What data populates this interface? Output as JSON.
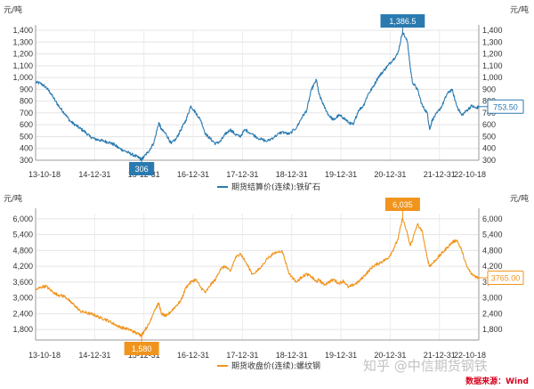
{
  "chart_data": [
    {
      "type": "line",
      "unit_left": "元/吨",
      "unit_right": "元/吨",
      "ylim": [
        300,
        1400
      ],
      "yticks": [
        300,
        400,
        500,
        600,
        700,
        800,
        900,
        1000,
        1100,
        1200,
        1300,
        1400
      ],
      "ytick_labels_left": [
        "300",
        "400",
        "500",
        "600",
        "700",
        "800",
        "900",
        "1,000",
        "1,100",
        "1,200",
        "1,300",
        "1,400"
      ],
      "ytick_labels_right": [
        "300",
        "400",
        "500",
        "600",
        "700",
        "800",
        "900",
        "1,000",
        "1,100",
        "1,200",
        "1,300",
        "1,400"
      ],
      "xlim": [
        2013.797,
        2022.797
      ],
      "x_tick_values": [
        2013.797,
        2014.997,
        2015.997,
        2016.997,
        2017.997,
        2018.997,
        2019.997,
        2020.997,
        2021.997,
        2022.797
      ],
      "x_tick_labels": [
        "13-10-18",
        "14-12-31",
        "15-12-31",
        "16-12-31",
        "17-12-31",
        "18-12-31",
        "19-12-31",
        "20-12-31",
        "21-12-31",
        "22-10-18"
      ],
      "color": "#2a7ab0",
      "series": [
        {
          "name": "期货结算价(连续):铁矿石",
          "x": [
            2013.8,
            2013.9,
            2014.0,
            2014.1,
            2014.2,
            2014.3,
            2014.4,
            2014.5,
            2014.6,
            2014.7,
            2014.8,
            2014.9,
            2015.0,
            2015.1,
            2015.2,
            2015.3,
            2015.4,
            2015.5,
            2015.6,
            2015.7,
            2015.8,
            2015.9,
            2015.95,
            2016.0,
            2016.1,
            2016.2,
            2016.3,
            2016.35,
            2016.45,
            2016.55,
            2016.65,
            2016.75,
            2016.85,
            2016.95,
            2017.05,
            2017.15,
            2017.25,
            2017.35,
            2017.45,
            2017.55,
            2017.65,
            2017.75,
            2017.85,
            2017.95,
            2018.05,
            2018.2,
            2018.35,
            2018.5,
            2018.65,
            2018.8,
            2018.95,
            2019.1,
            2019.2,
            2019.3,
            2019.4,
            2019.5,
            2019.55,
            2019.65,
            2019.75,
            2019.85,
            2019.95,
            2020.05,
            2020.15,
            2020.25,
            2020.35,
            2020.45,
            2020.55,
            2020.65,
            2020.75,
            2020.85,
            2020.95,
            2021.05,
            2021.15,
            2021.25,
            2021.35,
            2021.4,
            2021.45,
            2021.55,
            2021.65,
            2021.75,
            2021.8,
            2021.85,
            2021.95,
            2022.05,
            2022.15,
            2022.25,
            2022.35,
            2022.45,
            2022.55,
            2022.65,
            2022.75,
            2022.797
          ],
          "y": [
            960,
            950,
            920,
            870,
            800,
            740,
            690,
            630,
            600,
            570,
            540,
            500,
            480,
            470,
            460,
            450,
            430,
            400,
            380,
            360,
            340,
            320,
            306,
            330,
            380,
            450,
            620,
            560,
            520,
            440,
            480,
            560,
            640,
            760,
            700,
            640,
            520,
            480,
            440,
            460,
            520,
            560,
            520,
            500,
            560,
            520,
            480,
            460,
            500,
            540,
            520,
            580,
            660,
            720,
            900,
            980,
            860,
            760,
            680,
            640,
            680,
            660,
            620,
            600,
            720,
            760,
            860,
            920,
            1000,
            1050,
            1100,
            1150,
            1200,
            1386.5,
            1300,
            1100,
            960,
            900,
            760,
            700,
            560,
            640,
            700,
            760,
            860,
            900,
            760,
            680,
            720,
            760,
            740,
            753.5
          ]
        }
      ],
      "annotations": [
        {
          "label": "1,386.5",
          "x": 2021.25,
          "y": 1386.5,
          "kind": "max"
        },
        {
          "label": "306",
          "x": 2015.95,
          "y": 306,
          "kind": "min"
        },
        {
          "label": "753.50",
          "x": 2022.797,
          "y": 753.5,
          "kind": "last"
        }
      ]
    },
    {
      "type": "line",
      "unit_left": "元/吨",
      "unit_right": "元/吨",
      "ylim": [
        1400,
        6200
      ],
      "yticks": [
        1800,
        2400,
        3000,
        3600,
        4200,
        4800,
        5400,
        6000
      ],
      "ytick_labels_left": [
        "1,800",
        "2,400",
        "3,000",
        "3,600",
        "4,200",
        "4,800",
        "5,400",
        "6,000"
      ],
      "ytick_labels_right": [
        "1,800",
        "2,400",
        "3,000",
        "3,600",
        "4,200",
        "4,800",
        "5,400",
        "6,000"
      ],
      "xlim": [
        2013.797,
        2022.797
      ],
      "x_tick_values": [
        2013.797,
        2014.997,
        2015.997,
        2016.997,
        2017.997,
        2018.997,
        2019.997,
        2020.997,
        2021.997,
        2022.797
      ],
      "x_tick_labels": [
        "13-10-18",
        "14-12-31",
        "15-12-31",
        "16-12-31",
        "17-12-31",
        "18-12-31",
        "19-12-31",
        "20-12-31",
        "21-12-31",
        "22-10-18"
      ],
      "color": "#f0941d",
      "series": [
        {
          "name": "期货收盘价(连续):螺纹钢",
          "x": [
            2013.8,
            2013.9,
            2014.0,
            2014.1,
            2014.2,
            2014.3,
            2014.4,
            2014.5,
            2014.6,
            2014.7,
            2014.8,
            2014.9,
            2015.0,
            2015.1,
            2015.2,
            2015.3,
            2015.4,
            2015.5,
            2015.6,
            2015.7,
            2015.8,
            2015.9,
            2015.95,
            2016.0,
            2016.1,
            2016.2,
            2016.3,
            2016.35,
            2016.45,
            2016.55,
            2016.65,
            2016.75,
            2016.85,
            2016.95,
            2017.05,
            2017.15,
            2017.25,
            2017.35,
            2017.45,
            2017.55,
            2017.65,
            2017.75,
            2017.85,
            2017.95,
            2018.05,
            2018.2,
            2018.35,
            2018.5,
            2018.65,
            2018.8,
            2018.95,
            2019.1,
            2019.2,
            2019.3,
            2019.4,
            2019.5,
            2019.55,
            2019.65,
            2019.75,
            2019.85,
            2019.95,
            2020.05,
            2020.15,
            2020.25,
            2020.35,
            2020.45,
            2020.55,
            2020.65,
            2020.75,
            2020.85,
            2020.95,
            2021.05,
            2021.15,
            2021.25,
            2021.35,
            2021.4,
            2021.45,
            2021.55,
            2021.65,
            2021.75,
            2021.8,
            2021.85,
            2021.95,
            2022.05,
            2022.15,
            2022.25,
            2022.35,
            2022.45,
            2022.55,
            2022.65,
            2022.75,
            2022.797
          ],
          "y": [
            3300,
            3400,
            3450,
            3300,
            3150,
            3100,
            3050,
            2850,
            2700,
            2500,
            2450,
            2400,
            2350,
            2250,
            2200,
            2100,
            2000,
            1900,
            1850,
            1800,
            1700,
            1620,
            1580,
            1750,
            2000,
            2500,
            2800,
            2400,
            2300,
            2500,
            2700,
            2900,
            3400,
            3600,
            3700,
            3400,
            3200,
            3500,
            3700,
            4100,
            4200,
            4000,
            4500,
            4700,
            4400,
            3900,
            4100,
            4500,
            4700,
            4800,
            3900,
            3600,
            3800,
            3900,
            3800,
            3600,
            3700,
            3500,
            3600,
            3700,
            3550,
            3650,
            3400,
            3500,
            3600,
            3800,
            4000,
            4200,
            4300,
            4400,
            4500,
            4800,
            5200,
            6035,
            5400,
            5000,
            5200,
            5800,
            5500,
            4500,
            4200,
            4300,
            4500,
            4700,
            4900,
            5100,
            5200,
            4800,
            4200,
            3900,
            3800,
            3765
          ]
        }
      ],
      "annotations": [
        {
          "label": "6,035",
          "x": 2021.25,
          "y": 6035,
          "kind": "max"
        },
        {
          "label": "1,580",
          "x": 2015.95,
          "y": 1580,
          "kind": "min"
        },
        {
          "label": "3765.00",
          "x": 2022.797,
          "y": 3765,
          "kind": "last"
        }
      ]
    }
  ],
  "watermark": "知乎 @中信期货钢铁",
  "source": "数据来源：Wind"
}
